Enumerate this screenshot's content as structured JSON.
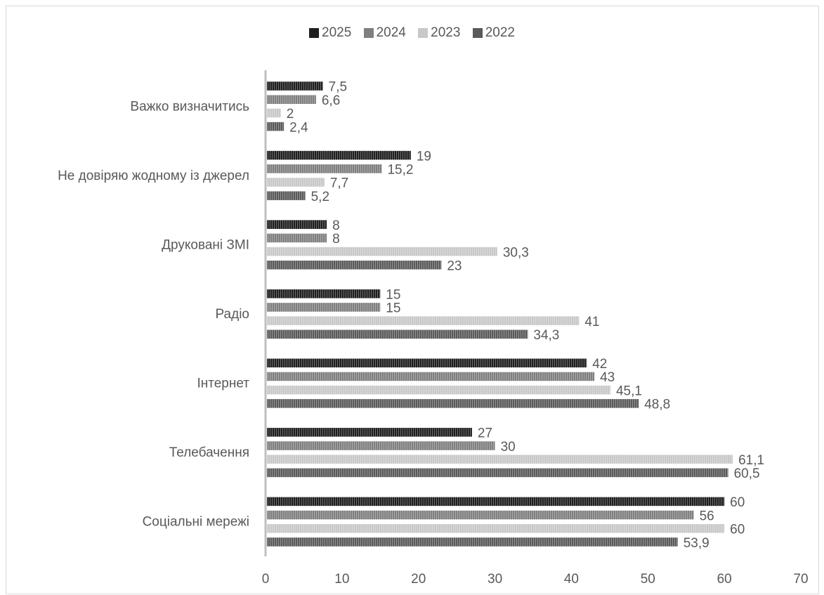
{
  "chart_data": {
    "type": "bar",
    "orientation": "horizontal",
    "categories": [
      "Соціальні мережі",
      "Телебачення",
      "Інтернет",
      "Радіо",
      "Друковані ЗМІ",
      "Не довіряю жодному із джерел",
      "Важко визначитись"
    ],
    "series": [
      {
        "name": "2025",
        "values": [
          60,
          27,
          42,
          15,
          8,
          19,
          7.5
        ],
        "value_labels": [
          "60",
          "27",
          "42",
          "15",
          "8",
          "19",
          "7,5"
        ]
      },
      {
        "name": "2024",
        "values": [
          56,
          30,
          43,
          15,
          8,
          15.2,
          6.6
        ],
        "value_labels": [
          "56",
          "30",
          "43",
          "15",
          "8",
          "15,2",
          "6,6"
        ]
      },
      {
        "name": "2023",
        "values": [
          60,
          61.1,
          45.1,
          41,
          30.3,
          7.7,
          2
        ],
        "value_labels": [
          "60",
          "61,1",
          "45,1",
          "41",
          "30,3",
          "7,7",
          "2"
        ]
      },
      {
        "name": "2022",
        "values": [
          53.9,
          60.5,
          48.8,
          34.3,
          23,
          5.2,
          2.4
        ],
        "value_labels": [
          "53,9",
          "60,5",
          "48,8",
          "34,3",
          "23",
          "5,2",
          "2,4"
        ]
      }
    ],
    "xlim": [
      0,
      70
    ],
    "x_ticks": [
      "0",
      "10",
      "20",
      "30",
      "40",
      "50",
      "60",
      "70"
    ],
    "grid": false,
    "legend_position": "top",
    "series_colors": [
      "#1f1f1f",
      "#7f7f7f",
      "#c8c8c8",
      "#5a5a5a"
    ],
    "title": "",
    "xlabel": "",
    "ylabel": ""
  }
}
